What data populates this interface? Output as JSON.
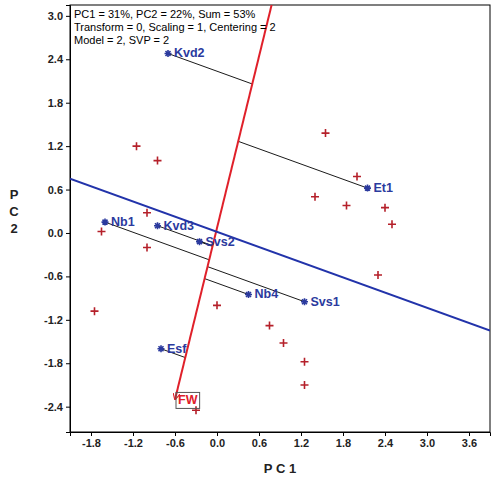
{
  "chart_data": {
    "type": "scatter",
    "header": [
      "PC1 = 31%, PC2 = 22%, Sum = 53%",
      "Transform = 0, Scaling = 1, Centering = 2",
      "Model = 2, SVP = 2"
    ],
    "xlabel": "P C 1",
    "ylabel": "P C 2",
    "xlim": [
      -2.1,
      3.9
    ],
    "ylim": [
      -2.75,
      3.15
    ],
    "xticks": [
      -1.8,
      -1.2,
      -0.6,
      {
        "value": 0,
        "label": "0.0"
      },
      0.6,
      1.2,
      1.8,
      2.4,
      {
        "value": 3,
        "label": "3.0"
      },
      3.6
    ],
    "yticks": [
      -2.4,
      -1.8,
      -1.2,
      -0.6,
      {
        "value": 0,
        "label": "0.0"
      },
      0.6,
      1.2,
      1.8,
      2.4,
      {
        "value": 3,
        "label": "3.0"
      }
    ],
    "series": [
      {
        "type": "scatter",
        "marker": "plus",
        "color": "#b5202a",
        "x": [
          -1.15,
          -0.85,
          1.55,
          2.0,
          1.4,
          1.85,
          2.4,
          2.5,
          -1.0,
          -1.0,
          -1.65,
          2.3,
          -1.75,
          0.0,
          0.75,
          0.95,
          1.25,
          1.25,
          -0.3
        ],
        "y": [
          1.2,
          1.0,
          1.38,
          0.78,
          0.5,
          0.38,
          0.35,
          0.12,
          0.28,
          -0.2,
          0.02,
          -0.58,
          -1.08,
          -1.0,
          -1.28,
          -1.52,
          -1.78,
          -2.1,
          -2.45
        ]
      },
      {
        "type": "scatter",
        "marker": "asterisk",
        "color": "#2b3a9e",
        "labels": [
          "Kvd2",
          "Et1",
          "Nb1",
          "Kvd3",
          "Svs2",
          "Nb4",
          "Svs1",
          "Esf"
        ],
        "x": [
          -0.7,
          2.15,
          -1.6,
          -0.85,
          -0.25,
          0.45,
          1.25,
          -0.8
        ],
        "y": [
          2.48,
          0.62,
          0.15,
          0.1,
          -0.12,
          -0.85,
          -0.95,
          -1.6
        ]
      }
    ],
    "lines": [
      {
        "color": "#e0202a",
        "marker": "arrow",
        "label": "FW",
        "x": [
          0.78,
          -0.6
        ],
        "y": [
          3.15,
          -2.3
        ]
      },
      {
        "color": "#2233aa",
        "x": [
          -2.1,
          3.9
        ],
        "y": [
          0.75,
          -1.35
        ]
      }
    ]
  }
}
